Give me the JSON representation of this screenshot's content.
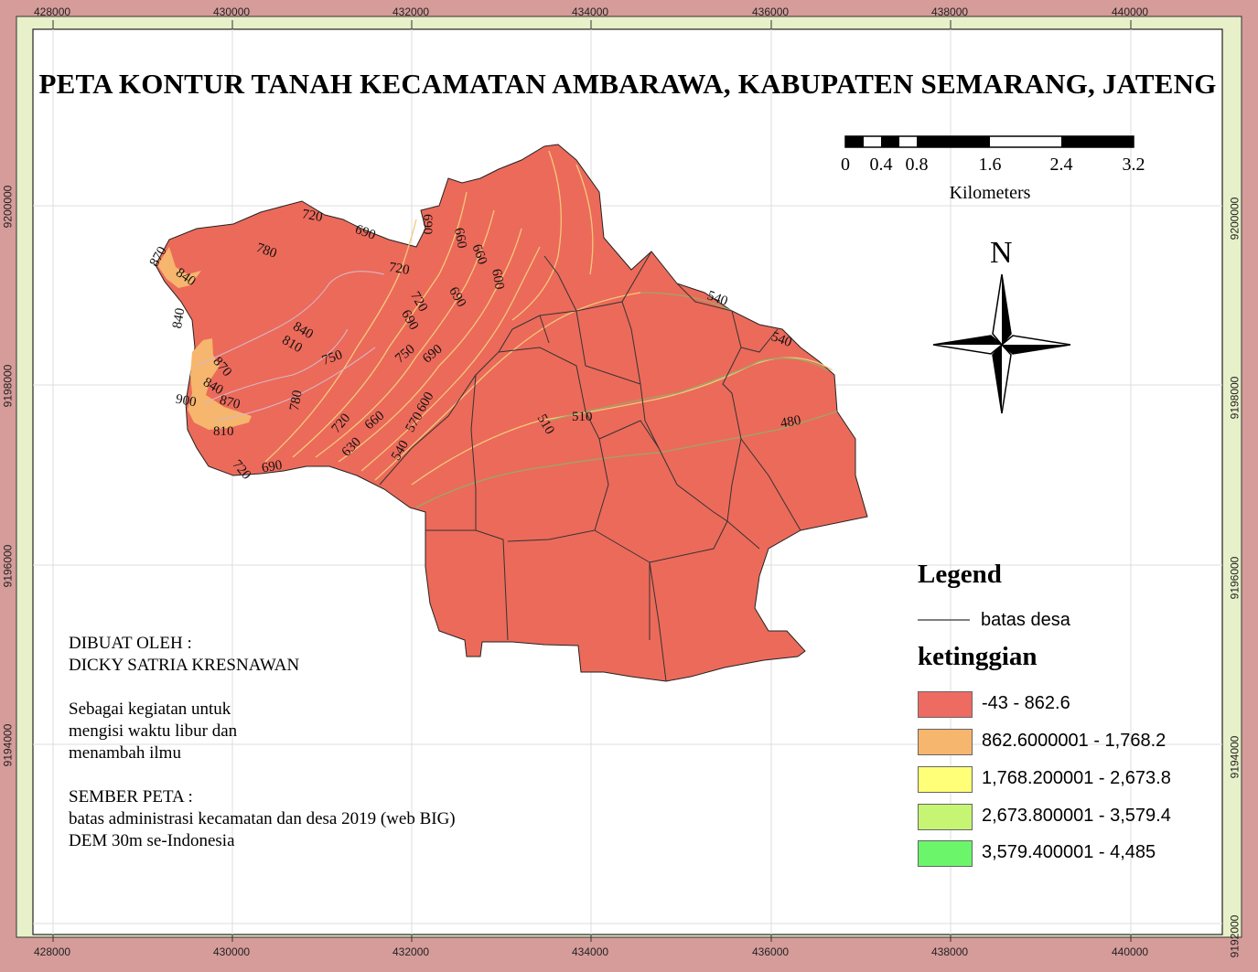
{
  "title": "PETA KONTUR TANAH KECAMATAN AMBARAWA, KABUPATEN SEMARANG, JATENG",
  "grid": {
    "x_ticks": [
      "428000",
      "430000",
      "432000",
      "434000",
      "436000",
      "438000",
      "440000"
    ],
    "y_ticks": [
      "9200000",
      "9198000",
      "9196000",
      "9194000",
      "9192000"
    ]
  },
  "scale_bar": {
    "ticks": [
      "0",
      "0.4",
      "0.8",
      "1.6",
      "2.4",
      "3.2"
    ],
    "unit": "Kilometers"
  },
  "north_arrow": {
    "label": "N"
  },
  "legend": {
    "title": "Legend",
    "line_label": "batas desa",
    "subtitle": "ketinggian",
    "classes": [
      {
        "label": "-43 - 862.6",
        "color": "#ee6b62"
      },
      {
        "label": "862.6000001 - 1,768.2",
        "color": "#f6b66d"
      },
      {
        "label": "1,768.200001 - 2,673.8",
        "color": "#ffff78"
      },
      {
        "label": "2,673.800001 - 3,579.4",
        "color": "#c6f574"
      },
      {
        "label": "3,579.400001 - 4,485",
        "color": "#6bf56b"
      }
    ]
  },
  "credits": {
    "lines": [
      "DIBUAT OLEH :",
      "DICKY SATRIA KRESNAWAN",
      "",
      "Sebagai kegiatan untuk",
      "mengisi waktu libur dan",
      "menambah ilmu",
      "",
      "SEMBER PETA :",
      "batas administrasi kecamatan dan desa 2019 (web BIG)",
      "DEM 30m se-Indonesia"
    ]
  },
  "contour_labels": [
    "870",
    "840",
    "840",
    "780",
    "720",
    "690",
    "720",
    "690",
    "660",
    "660",
    "690",
    "600",
    "720",
    "690",
    "840",
    "810",
    "750",
    "750",
    "690",
    "870",
    "840",
    "870",
    "900",
    "810",
    "780",
    "720",
    "660",
    "600",
    "570",
    "630",
    "540",
    "510",
    "510",
    "480",
    "540",
    "540",
    "720",
    "690"
  ]
}
